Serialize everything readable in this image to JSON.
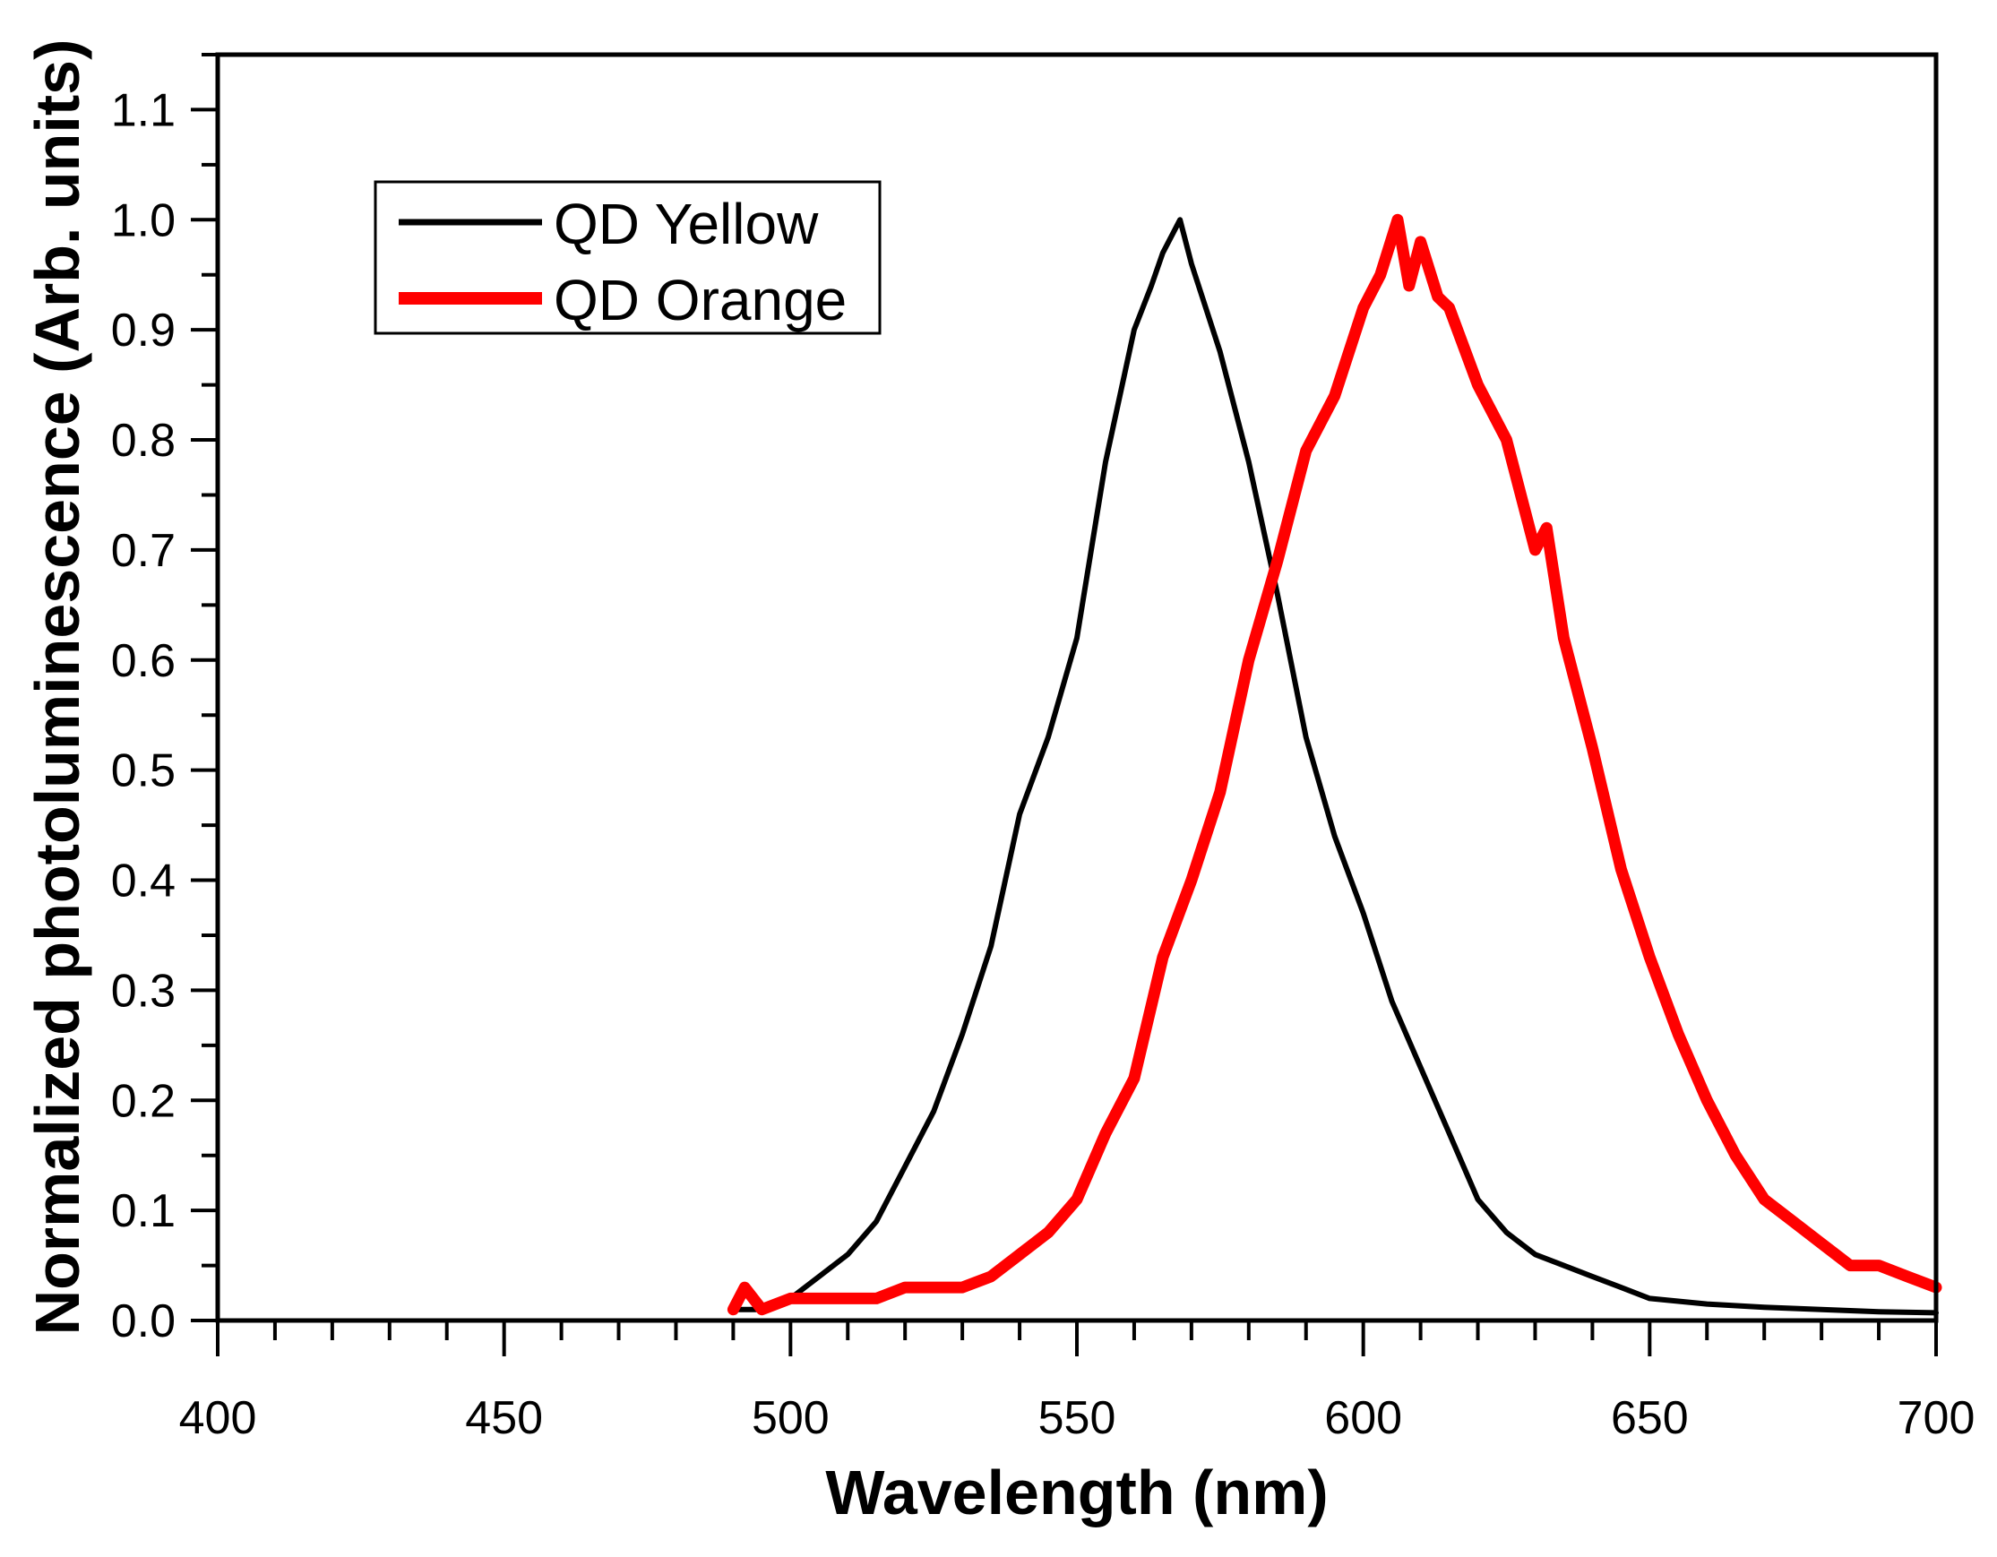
{
  "chart_data": {
    "type": "line",
    "title": "",
    "xlabel": "Wavelength (nm)",
    "ylabel": "Normalized photoluminescence (Arb. units)",
    "xlim": [
      400,
      700
    ],
    "ylim": [
      0,
      1.15
    ],
    "xticks": [
      400,
      450,
      500,
      550,
      600,
      650,
      700
    ],
    "xtick_labels": [
      "400",
      "450",
      "500",
      "550",
      "600",
      "650",
      "700"
    ],
    "xminor_step": 10,
    "yticks": [
      0,
      0.1,
      0.2,
      0.3,
      0.4,
      0.5,
      0.6,
      0.7,
      0.8,
      0.9,
      1.0,
      1.1
    ],
    "ytick_labels": [
      "0.0",
      "0.1",
      "0.2",
      "0.3",
      "0.4",
      "0.5",
      "0.6",
      "0.7",
      "0.8",
      "0.9",
      "1.0",
      "1.1"
    ],
    "yminor_step": 0.05,
    "grid": false,
    "legend_position": "top-left",
    "series": [
      {
        "name": "QD Yellow",
        "color": "#000000",
        "x": [
          490,
          495,
          500,
          505,
          510,
          515,
          520,
          525,
          530,
          535,
          540,
          545,
          550,
          555,
          560,
          563,
          565,
          567,
          568,
          570,
          575,
          580,
          585,
          590,
          595,
          600,
          605,
          610,
          615,
          620,
          625,
          630,
          635,
          640,
          645,
          650,
          660,
          670,
          680,
          690,
          700
        ],
        "y": [
          0.01,
          0.01,
          0.02,
          0.04,
          0.06,
          0.09,
          0.14,
          0.19,
          0.26,
          0.34,
          0.46,
          0.53,
          0.62,
          0.78,
          0.9,
          0.94,
          0.97,
          0.99,
          1.0,
          0.96,
          0.88,
          0.78,
          0.66,
          0.53,
          0.44,
          0.37,
          0.29,
          0.23,
          0.17,
          0.11,
          0.08,
          0.06,
          0.05,
          0.04,
          0.03,
          0.02,
          0.015,
          0.012,
          0.01,
          0.008,
          0.007
        ]
      },
      {
        "name": "QD Orange",
        "color": "#ff0000",
        "x": [
          490,
          492,
          495,
          500,
          505,
          510,
          515,
          520,
          525,
          530,
          535,
          540,
          545,
          550,
          555,
          560,
          565,
          570,
          575,
          580,
          585,
          590,
          595,
          600,
          603,
          606,
          608,
          610,
          613,
          615,
          620,
          625,
          630,
          632,
          635,
          640,
          645,
          650,
          655,
          660,
          665,
          670,
          675,
          680,
          685,
          690,
          695,
          700
        ],
        "y": [
          0.01,
          0.03,
          0.01,
          0.02,
          0.02,
          0.02,
          0.02,
          0.03,
          0.03,
          0.03,
          0.04,
          0.06,
          0.08,
          0.11,
          0.17,
          0.22,
          0.33,
          0.4,
          0.48,
          0.6,
          0.69,
          0.79,
          0.84,
          0.92,
          0.95,
          1.0,
          0.94,
          0.98,
          0.93,
          0.92,
          0.85,
          0.8,
          0.7,
          0.72,
          0.62,
          0.52,
          0.41,
          0.33,
          0.26,
          0.2,
          0.15,
          0.11,
          0.09,
          0.07,
          0.05,
          0.05,
          0.04,
          0.03
        ]
      }
    ]
  }
}
